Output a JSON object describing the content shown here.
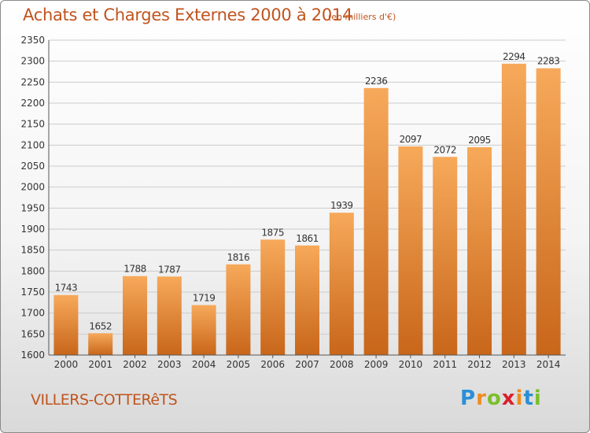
{
  "title": "Achats et Charges Externes 2000 à 2014",
  "subtitle": "(en milliers d'€)",
  "commune": "VILLERS-COTTERêTS",
  "logo": {
    "letters": [
      "P",
      "r",
      "o",
      "x",
      "i",
      "t",
      "i"
    ],
    "colors": [
      "#2a8fd6",
      "#f08c1e",
      "#7bbf2a",
      "#d9202c",
      "#f08c1e",
      "#2a8fd6",
      "#7bbf2a"
    ]
  },
  "colors": {
    "bar_light": "#f7a95a",
    "bar_dark": "#c8661a",
    "title": "#c0541e",
    "grid": "#cccccc",
    "axis": "#555555"
  },
  "chart_data": {
    "type": "bar",
    "categories": [
      "2000",
      "2001",
      "2002",
      "2003",
      "2004",
      "2005",
      "2006",
      "2007",
      "2008",
      "2009",
      "2010",
      "2011",
      "2012",
      "2013",
      "2014"
    ],
    "values": [
      1743,
      1652,
      1788,
      1787,
      1719,
      1816,
      1875,
      1861,
      1939,
      2236,
      2097,
      2072,
      2095,
      2294,
      2283
    ],
    "ylim": [
      1600,
      2350
    ],
    "yticks": [
      1600,
      1650,
      1700,
      1750,
      1800,
      1850,
      1900,
      1950,
      2000,
      2050,
      2100,
      2150,
      2200,
      2250,
      2300,
      2350
    ],
    "grid": true,
    "data_labels": true
  }
}
